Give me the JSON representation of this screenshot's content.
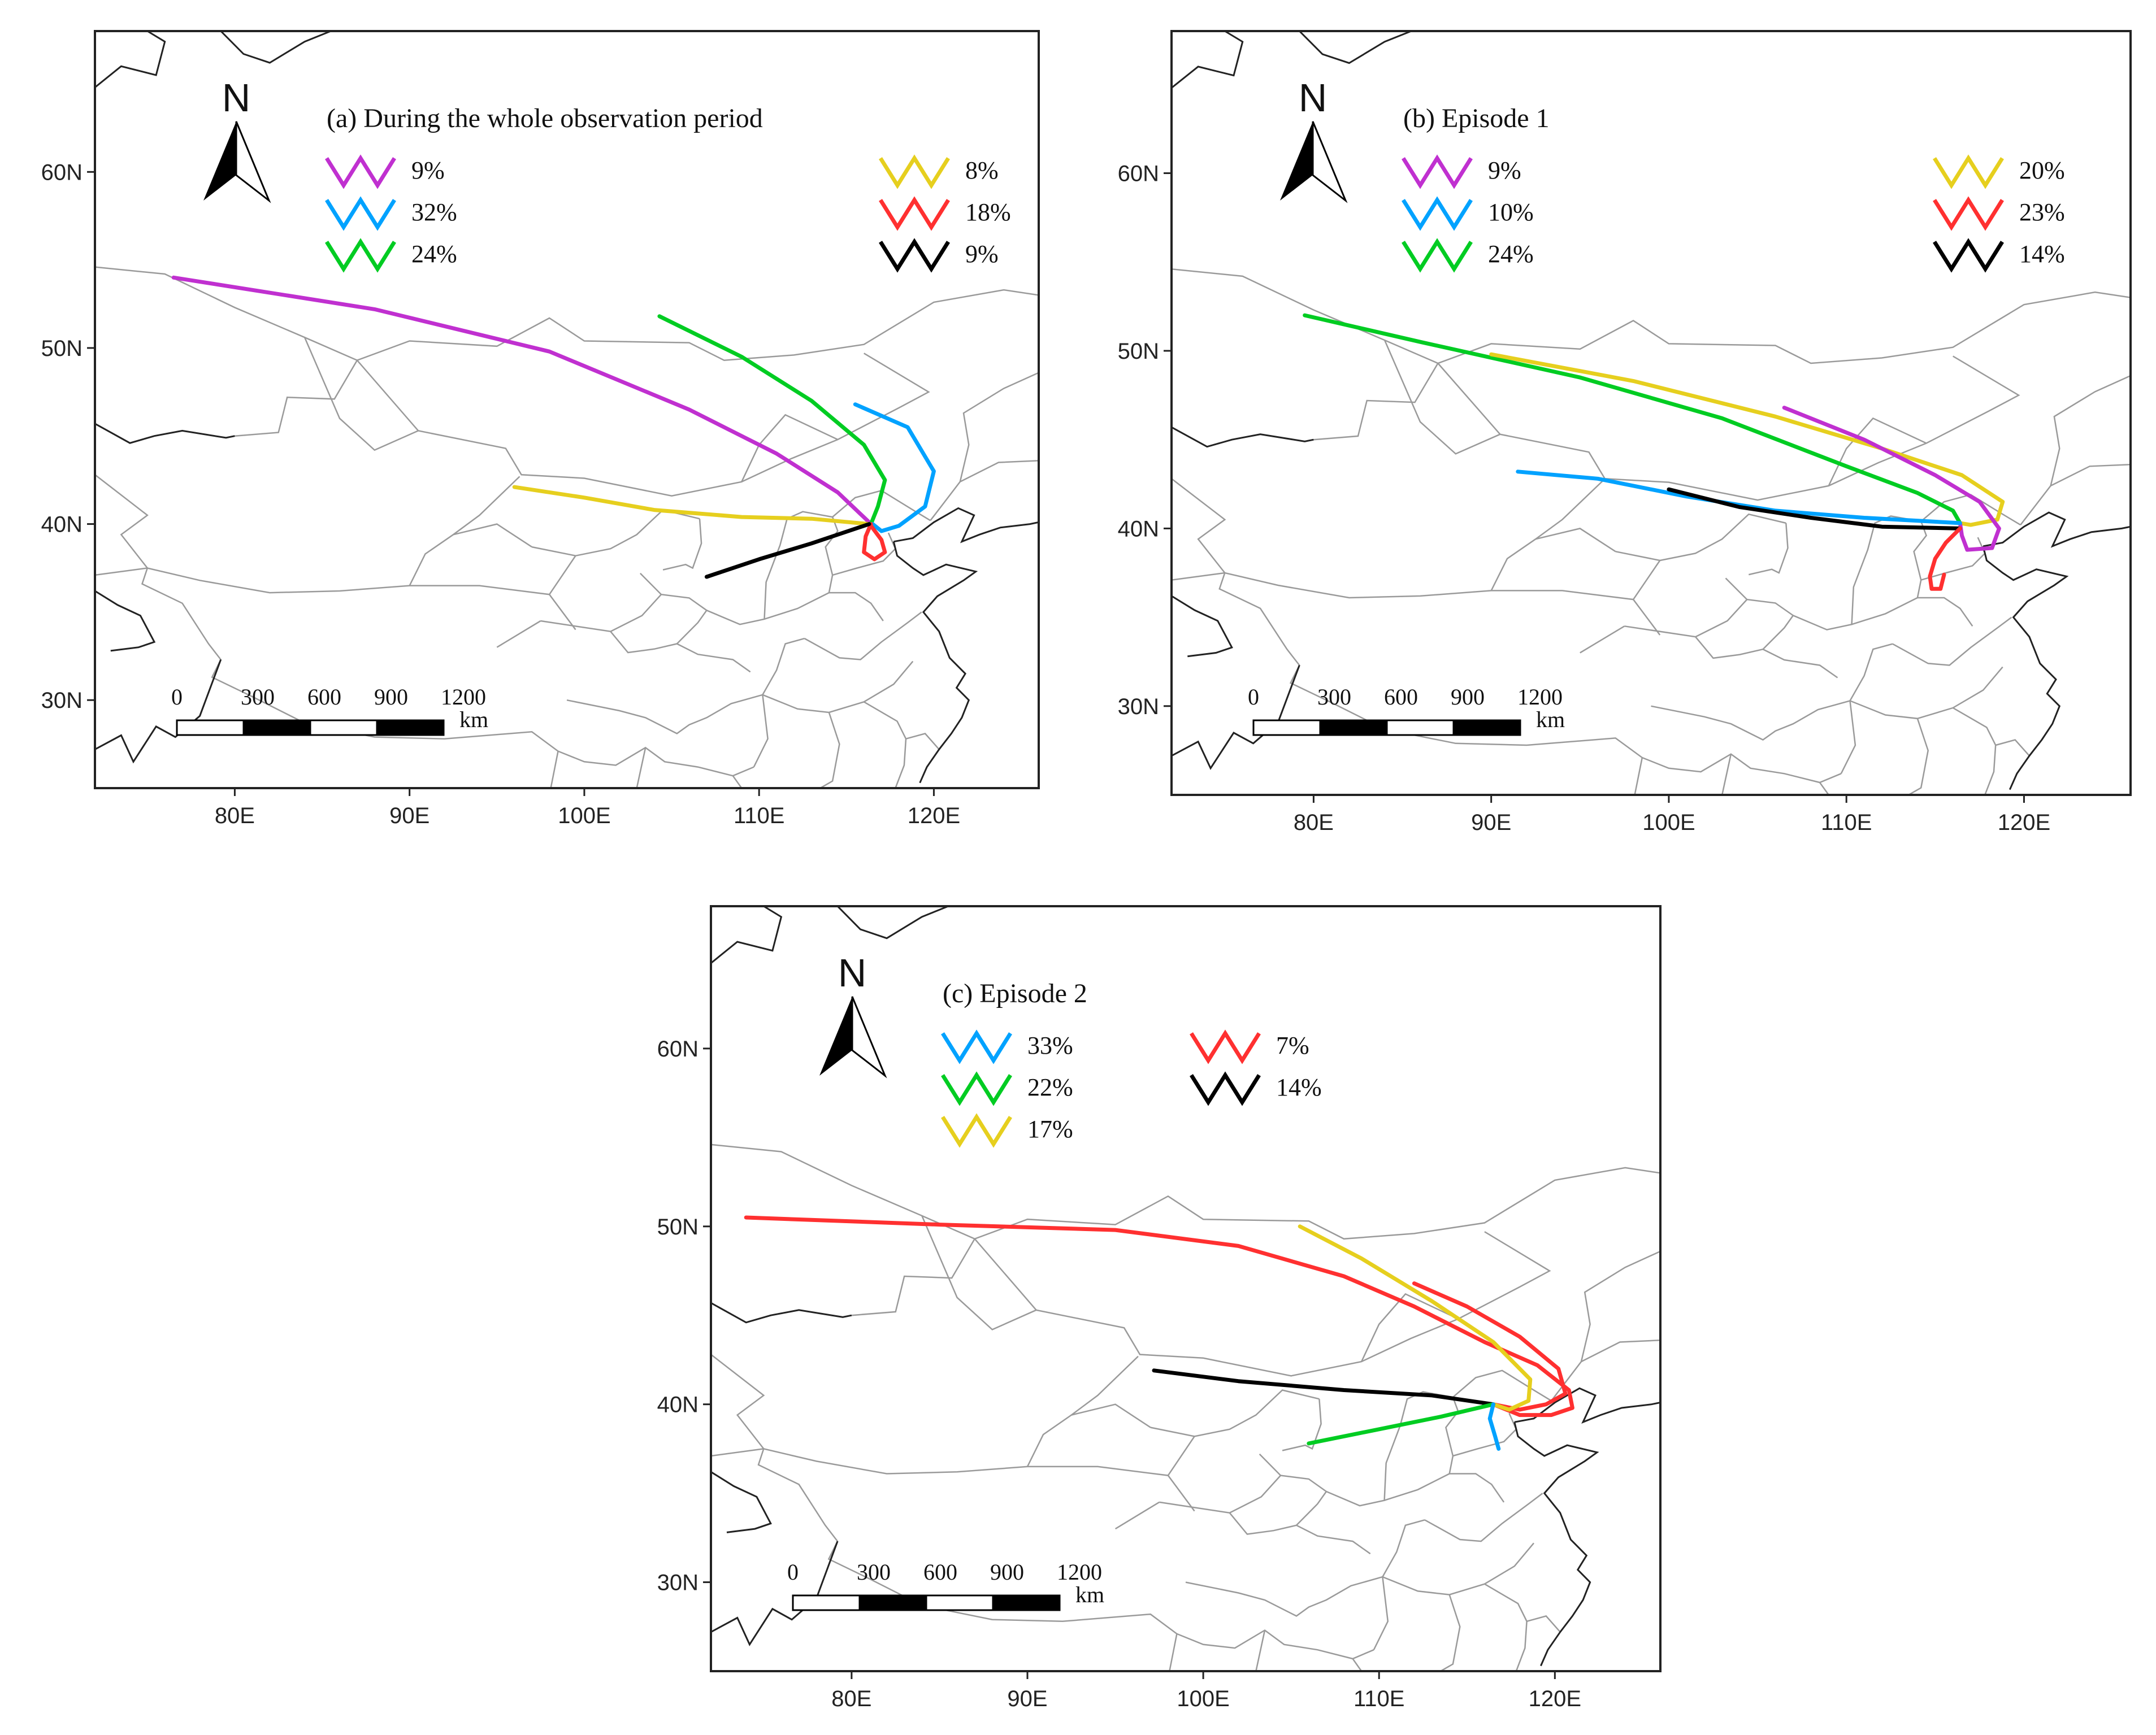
{
  "colors": {
    "magenta": "#c030d0",
    "blue": "#00a2ff",
    "green": "#00cc22",
    "yellow": "#e6cf1e",
    "red": "#ff3030",
    "black": "#000000"
  },
  "axes": {
    "lon_ticks": [
      "80E",
      "90E",
      "100E",
      "110E",
      "120E"
    ],
    "lat_ticks": [
      "60N",
      "50N",
      "40N",
      "30N"
    ],
    "lon_range": [
      72,
      126
    ],
    "lat_range": [
      25,
      68
    ]
  },
  "north_arrow": {
    "label": "N"
  },
  "scale_bar": {
    "labels": [
      "0",
      "300",
      "600",
      "900",
      "1200"
    ],
    "unit": "km"
  },
  "panels": [
    {
      "id": "a",
      "title": "(a) During the whole observation period",
      "legend": [
        {
          "color": "magenta",
          "pct": "9%"
        },
        {
          "color": "blue",
          "pct": "32%"
        },
        {
          "color": "green",
          "pct": "24%"
        },
        {
          "color": "yellow",
          "pct": "8%"
        },
        {
          "color": "red",
          "pct": "18%"
        },
        {
          "color": "black",
          "pct": "9%"
        }
      ],
      "trajectories": [
        {
          "color": "magenta",
          "points": [
            [
              76.5,
              54.0
            ],
            [
              88,
              52.2
            ],
            [
              98,
              49.8
            ],
            [
              106,
              46.5
            ],
            [
              111,
              44
            ],
            [
              114.5,
              41.8
            ],
            [
              116.3,
              40.1
            ]
          ]
        },
        {
          "color": "green",
          "points": [
            [
              104.3,
              51.8
            ],
            [
              109,
              49.5
            ],
            [
              113,
              47
            ],
            [
              116,
              44.5
            ],
            [
              117.2,
              42.5
            ],
            [
              116.8,
              41
            ],
            [
              116.4,
              40.0
            ]
          ]
        },
        {
          "color": "blue",
          "points": [
            [
              115.5,
              46.8
            ],
            [
              118.5,
              45.5
            ],
            [
              120,
              43
            ],
            [
              119.5,
              41
            ],
            [
              118,
              39.9
            ],
            [
              117,
              39.6
            ],
            [
              116.5,
              40.0
            ]
          ]
        },
        {
          "color": "yellow",
          "points": [
            [
              96,
              42.1
            ],
            [
              100,
              41.5
            ],
            [
              104,
              40.8
            ],
            [
              109,
              40.4
            ],
            [
              113,
              40.3
            ],
            [
              116.3,
              40.0
            ]
          ]
        },
        {
          "color": "red",
          "points": [
            [
              116.4,
              40.0
            ],
            [
              116.1,
              39.3
            ],
            [
              116.0,
              38.4
            ],
            [
              116.6,
              38.0
            ],
            [
              117.2,
              38.4
            ],
            [
              117.0,
              39.1
            ],
            [
              116.4,
              39.9
            ]
          ]
        },
        {
          "color": "black",
          "points": [
            [
              107,
              37.0
            ],
            [
              110,
              38.0
            ],
            [
              113,
              38.9
            ],
            [
              116.3,
              40.0
            ]
          ]
        }
      ]
    },
    {
      "id": "b",
      "title": "(b) Episode 1",
      "legend": [
        {
          "color": "magenta",
          "pct": "9%"
        },
        {
          "color": "blue",
          "pct": "10%"
        },
        {
          "color": "green",
          "pct": "24%"
        },
        {
          "color": "yellow",
          "pct": "20%"
        },
        {
          "color": "red",
          "pct": "23%"
        },
        {
          "color": "black",
          "pct": "14%"
        }
      ],
      "trajectories": [
        {
          "color": "green",
          "points": [
            [
              79.5,
              52.0
            ],
            [
              86,
              50.5
            ],
            [
              95,
              48.5
            ],
            [
              103,
              46.2
            ],
            [
              110,
              43.5
            ],
            [
              114,
              42
            ],
            [
              116,
              41
            ],
            [
              116.4,
              40.3
            ]
          ]
        },
        {
          "color": "yellow",
          "points": [
            [
              90,
              49.8
            ],
            [
              98,
              48.3
            ],
            [
              106,
              46.3
            ],
            [
              112,
              44.5
            ],
            [
              116.5,
              43
            ],
            [
              118.8,
              41.5
            ],
            [
              118.5,
              40.5
            ],
            [
              117,
              40.2
            ],
            [
              116.4,
              40.3
            ]
          ]
        },
        {
          "color": "magenta",
          "points": [
            [
              106.5,
              46.8
            ],
            [
              111,
              45
            ],
            [
              115,
              43
            ],
            [
              117.5,
              41.5
            ],
            [
              118.6,
              40
            ],
            [
              118.2,
              38.9
            ],
            [
              116.8,
              38.8
            ],
            [
              116.5,
              39.6
            ],
            [
              116.4,
              40.3
            ]
          ]
        },
        {
          "color": "blue",
          "points": [
            [
              91.5,
              43.2
            ],
            [
              96,
              42.8
            ],
            [
              101,
              41.8
            ],
            [
              106,
              41.0
            ],
            [
              111,
              40.6
            ],
            [
              116.4,
              40.3
            ]
          ]
        },
        {
          "color": "black",
          "points": [
            [
              100,
              42.2
            ],
            [
              104,
              41.2
            ],
            [
              108,
              40.6
            ],
            [
              112,
              40.1
            ],
            [
              116.4,
              40.0
            ]
          ]
        },
        {
          "color": "red",
          "points": [
            [
              116.4,
              40.0
            ],
            [
              115.6,
              39.2
            ],
            [
              115.0,
              38.3
            ],
            [
              114.7,
              37.3
            ],
            [
              114.8,
              36.6
            ],
            [
              115.3,
              36.6
            ],
            [
              115.5,
              37.4
            ]
          ]
        }
      ]
    },
    {
      "id": "c",
      "title": "(c) Episode 2",
      "legend": [
        {
          "color": "blue",
          "pct": "33%"
        },
        {
          "color": "green",
          "pct": "22%"
        },
        {
          "color": "yellow",
          "pct": "17%"
        },
        {
          "color": "red",
          "pct": "7%"
        },
        {
          "color": "black",
          "pct": "14%"
        }
      ],
      "trajectories": [
        {
          "color": "red",
          "points": [
            [
              74,
              50.5
            ],
            [
              85,
              50.1
            ],
            [
              95,
              49.8
            ],
            [
              102,
              48.9
            ],
            [
              108,
              47.2
            ],
            [
              112,
              45.5
            ],
            [
              116,
              43.5
            ],
            [
              119,
              42.2
            ],
            [
              120.8,
              40.8
            ],
            [
              121,
              39.8
            ],
            [
              119.8,
              39.4
            ],
            [
              118,
              39.4
            ],
            [
              116.5,
              40.0
            ]
          ]
        },
        {
          "color": "red",
          "points": [
            [
              112,
              46.8
            ],
            [
              115,
              45.5
            ],
            [
              118,
              43.8
            ],
            [
              120.2,
              42
            ],
            [
              120.6,
              40.6
            ],
            [
              119.5,
              40.0
            ],
            [
              118,
              39.7
            ],
            [
              116.5,
              40.0
            ]
          ]
        },
        {
          "color": "yellow",
          "points": [
            [
              105.5,
              50.0
            ],
            [
              109,
              48.2
            ],
            [
              113,
              45.8
            ],
            [
              116.5,
              43.5
            ],
            [
              118.6,
              41.4
            ],
            [
              118.5,
              40.2
            ],
            [
              117.4,
              39.7
            ],
            [
              116.5,
              40.0
            ]
          ]
        },
        {
          "color": "black",
          "points": [
            [
              97.2,
              41.9
            ],
            [
              102,
              41.3
            ],
            [
              108,
              40.8
            ],
            [
              113,
              40.5
            ],
            [
              116.5,
              40.0
            ]
          ]
        },
        {
          "color": "green",
          "points": [
            [
              106,
              37.8
            ],
            [
              110,
              38.6
            ],
            [
              113.5,
              39.3
            ],
            [
              116.5,
              40.0
            ]
          ]
        },
        {
          "color": "blue",
          "points": [
            [
              116.5,
              40.0
            ],
            [
              116.3,
              39.2
            ],
            [
              116.6,
              38.2
            ],
            [
              116.8,
              37.5
            ]
          ]
        }
      ]
    }
  ]
}
